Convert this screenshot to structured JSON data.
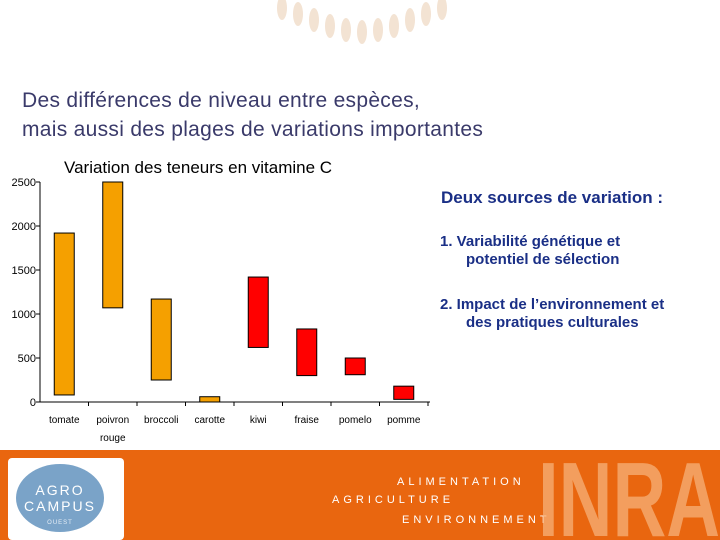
{
  "slide": {
    "title_line1": "Des différences de niveau entre espèces,",
    "title_line2": "mais aussi des  plages de variations importantes"
  },
  "side": {
    "heading": "Deux sources de variation :",
    "point1_line1": "1. Variabilité génétique et",
    "point1_line2": "potentiel de sélection",
    "point2_line1": "2. Impact de l’environnement et",
    "point2_line2": "des pratiques culturales"
  },
  "footer": {
    "logo_line1": "AGRO",
    "logo_line2": "CAMPUS",
    "logo_line3": "OUEST",
    "word1": "ALIMENTATION",
    "word2": "AGRICULTURE",
    "word3": "ENVIRONNEMENT",
    "brand": "INRA"
  },
  "colors": {
    "orange": "#f5a000",
    "red": "#ff0000",
    "footer": "#e9660f",
    "text_blue": "#1a2f86"
  },
  "chart_data": {
    "type": "bar",
    "subtype": "floating-range",
    "title": "Variation des teneurs en vitamine C",
    "xlabel": "",
    "ylabel": "",
    "ylim": [
      0,
      2500
    ],
    "yticks": [
      "0",
      "500",
      "1000",
      "1500",
      "2000",
      "2500"
    ],
    "categories": [
      "tomate",
      "poivron rouge",
      "broccoli",
      "carotte",
      "kiwi",
      "fraise",
      "pomelo",
      "pomme"
    ],
    "category_labels": [
      [
        "tomate"
      ],
      [
        "poivron",
        "rouge"
      ],
      [
        "broccoli"
      ],
      [
        "carotte"
      ],
      [
        "kiwi"
      ],
      [
        "fraise"
      ],
      [
        "pomelo"
      ],
      [
        "pomme"
      ]
    ],
    "ranges": [
      {
        "low": 80,
        "high": 1920,
        "color": "orange"
      },
      {
        "low": 1070,
        "high": 2500,
        "color": "orange"
      },
      {
        "low": 250,
        "high": 1170,
        "color": "orange"
      },
      {
        "low": 0,
        "high": 60,
        "color": "orange"
      },
      {
        "low": 620,
        "high": 1420,
        "color": "red"
      },
      {
        "low": 300,
        "high": 830,
        "color": "red"
      },
      {
        "low": 310,
        "high": 500,
        "color": "red"
      },
      {
        "low": 30,
        "high": 180,
        "color": "red"
      }
    ],
    "grid": false,
    "legend": "none"
  }
}
